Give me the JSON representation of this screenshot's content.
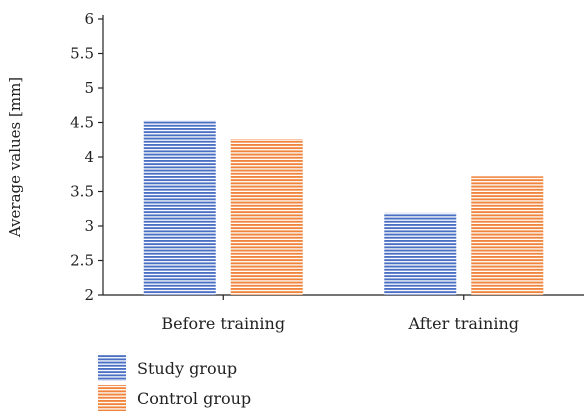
{
  "chart_data": {
    "type": "bar",
    "categories": [
      "Before training",
      "After training"
    ],
    "series": [
      {
        "name": "Study group",
        "values": [
          4.53,
          3.19
        ],
        "color": "#4a6fc4"
      },
      {
        "name": "Control group",
        "values": [
          4.26,
          3.72
        ],
        "color": "#f0843c"
      }
    ],
    "ylabel": "Average values [mm]",
    "xlabel": "",
    "ylim": [
      2,
      6
    ],
    "yticks": [
      "2",
      "2.5",
      "3",
      "3.5",
      "4",
      "4.5",
      "5",
      "5.5",
      "6"
    ],
    "fill_pattern": "horizontal-stripes",
    "grid": false,
    "legend_position": "bottom-left"
  }
}
